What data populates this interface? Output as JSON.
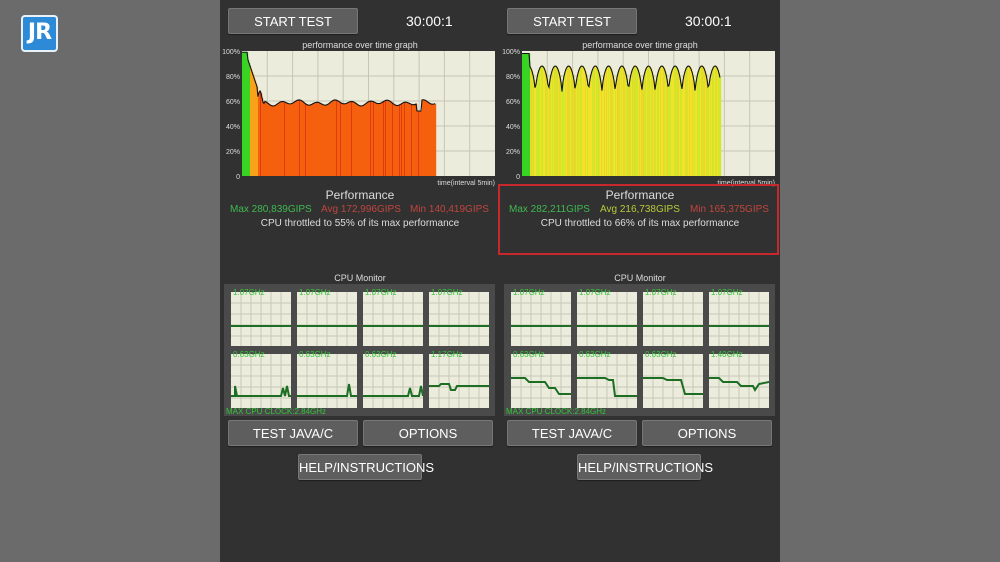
{
  "logo": {
    "text": "JR"
  },
  "panels": [
    {
      "start_label": "START TEST",
      "timer": "30:00:1",
      "graph_title": "performance over time graph",
      "y_ticks": [
        "100%",
        "80%",
        "60%",
        "40%",
        "20%",
        "0"
      ],
      "x_label": "time(interval 5min)",
      "perf_title": "Performance",
      "max": "Max 280,839GIPS",
      "avg": "Avg 172,996GIPS",
      "min": "Min 140,419GIPS",
      "throttle": "CPU throttled to 55% of its max performance",
      "cpu_title": "CPU Monitor",
      "cores": [
        "1.07GHz",
        "1.07GHz",
        "1.07GHz",
        "1.07GHz",
        "0.63GHz",
        "0.63GHz",
        "0.63GHz",
        "1.17GHz"
      ],
      "max_clock": "MAX CPU CLOCK:2.84GHz",
      "java_label": "TEST JAVA/C",
      "options_label": "OPTIONS",
      "help_label": "HELP/INSTRUCTIONS"
    },
    {
      "start_label": "START TEST",
      "timer": "30:00:1",
      "graph_title": "performance over time graph",
      "y_ticks": [
        "100%",
        "80%",
        "60%",
        "40%",
        "20%",
        "0"
      ],
      "x_label": "time(interval 5min)",
      "perf_title": "Performance",
      "max": "Max 282,211GIPS",
      "avg": "Avg 216,738GIPS",
      "min": "Min 165,375GIPS",
      "throttle": "CPU throttled to 66% of its max performance",
      "cpu_title": "CPU Monitor",
      "cores": [
        "1.07GHz",
        "1.07GHz",
        "1.07GHz",
        "1.07GHz",
        "0.63GHz",
        "0.63GHz",
        "0.63GHz",
        "1.40GHz"
      ],
      "max_clock": "MAX CPU CLOCK:2.84GHz",
      "java_label": "TEST JAVA/C",
      "options_label": "OPTIONS",
      "help_label": "HELP/INSTRUCTIONS"
    }
  ],
  "colors": {
    "max": "#3fb950",
    "avg": "#b8c93a",
    "min": "#c0463e",
    "highlight": "#c8272b"
  }
}
